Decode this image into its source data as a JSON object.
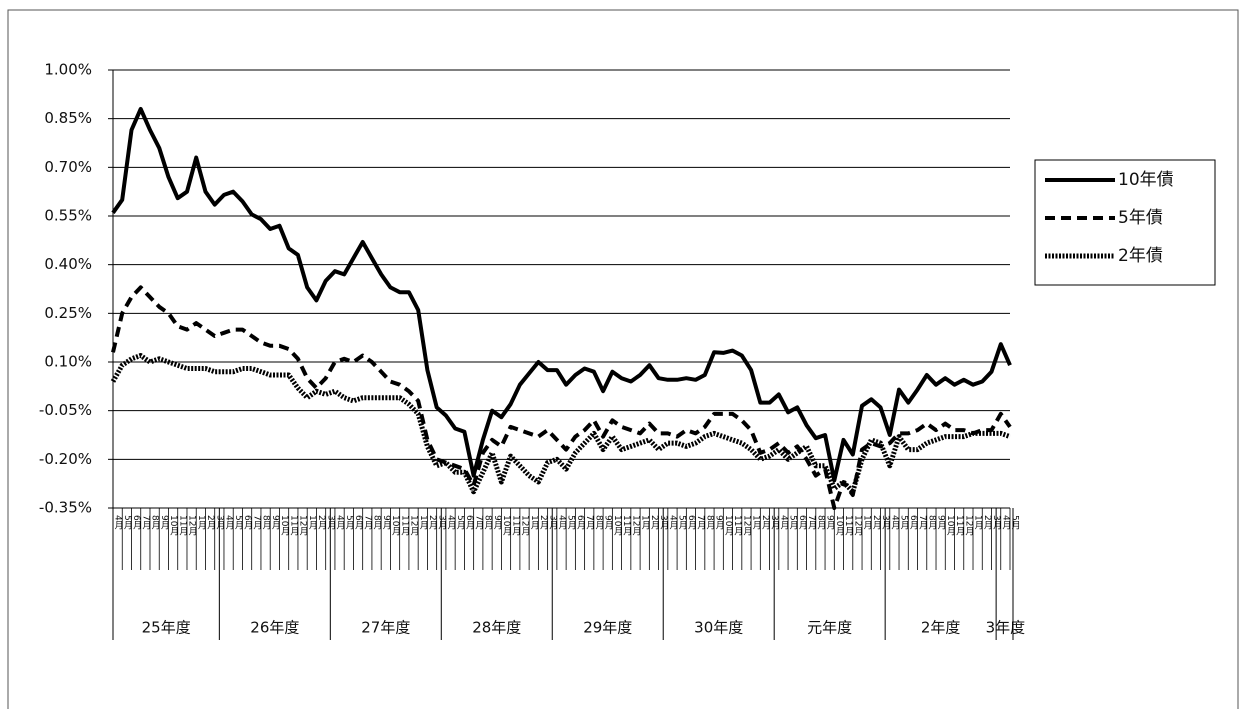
{
  "chart_data": {
    "type": "line",
    "groups": [
      {
        "label": "25年度",
        "categories": [
          "4月",
          "5月",
          "6月",
          "7月",
          "8月",
          "9月",
          "10月",
          "11月",
          "12月",
          "1月",
          "2月",
          "3月"
        ]
      },
      {
        "label": "26年度",
        "categories": [
          "4月",
          "5月",
          "6月",
          "7月",
          "8月",
          "9月",
          "10月",
          "11月",
          "12月",
          "1月",
          "2月",
          "3月"
        ]
      },
      {
        "label": "27年度",
        "categories": [
          "4月",
          "5月",
          "6月",
          "7月",
          "8月",
          "9月",
          "10月",
          "11月",
          "12月",
          "1月",
          "2月",
          "3月"
        ]
      },
      {
        "label": "28年度",
        "categories": [
          "4月",
          "5月",
          "6月",
          "7月",
          "8月",
          "9月",
          "10月",
          "11月",
          "12月",
          "1月",
          "2月",
          "3月"
        ]
      },
      {
        "label": "29年度",
        "categories": [
          "4月",
          "5月",
          "6月",
          "7月",
          "8月",
          "9月",
          "10月",
          "11月",
          "12月",
          "1月",
          "2月",
          "3月"
        ]
      },
      {
        "label": "30年度",
        "categories": [
          "4月",
          "5月",
          "6月",
          "7月",
          "8月",
          "9月",
          "10月",
          "11月",
          "12月",
          "1月",
          "2月",
          "3月"
        ]
      },
      {
        "label": "元年度",
        "categories": [
          "4月",
          "5月",
          "6月",
          "7月",
          "8月",
          "9月",
          "10月",
          "11月",
          "12月",
          "1月",
          "2月",
          "3月"
        ]
      },
      {
        "label": "2年度",
        "categories": [
          "4月",
          "5月",
          "6月",
          "7月",
          "8月",
          "9月",
          "10月",
          "11月",
          "12月",
          "1月",
          "2月",
          "3月"
        ]
      },
      {
        "label": "3年度",
        "categories": [
          "4月",
          "5月"
        ]
      }
    ],
    "series": [
      {
        "name": "10年債",
        "color": "#000000",
        "style": "solid",
        "values": [
          0.56,
          0.6,
          0.815,
          0.88,
          0.815,
          0.76,
          0.67,
          0.605,
          0.625,
          0.73,
          0.625,
          0.585,
          0.615,
          0.625,
          0.595,
          0.555,
          0.54,
          0.51,
          0.52,
          0.45,
          0.43,
          0.33,
          0.29,
          0.35,
          0.38,
          0.37,
          0.42,
          0.47,
          0.42,
          0.37,
          0.33,
          0.315,
          0.315,
          0.26,
          0.075,
          -0.04,
          -0.065,
          -0.105,
          -0.115,
          -0.25,
          -0.14,
          -0.05,
          -0.07,
          -0.03,
          0.03,
          0.065,
          0.1,
          0.075,
          0.075,
          0.03,
          0.06,
          0.08,
          0.07,
          0.01,
          0.07,
          0.05,
          0.04,
          0.06,
          0.09,
          0.05,
          0.045,
          0.045,
          0.05,
          0.045,
          0.06,
          0.13,
          0.128,
          0.135,
          0.12,
          0.075,
          -0.025,
          -0.025,
          0.0,
          -0.055,
          -0.04,
          -0.095,
          -0.135,
          -0.125,
          -0.265,
          -0.14,
          -0.185,
          -0.035,
          -0.015,
          -0.04,
          -0.125,
          0.015,
          -0.025,
          0.015,
          0.06,
          0.03,
          0.05,
          0.03,
          0.045,
          0.03,
          0.04,
          0.07,
          0.155,
          0.09
        ]
      },
      {
        "name": "5年債",
        "color": "#000000",
        "style": "dashed",
        "values": [
          0.13,
          0.25,
          0.3,
          0.33,
          0.3,
          0.27,
          0.25,
          0.21,
          0.2,
          0.22,
          0.2,
          0.18,
          0.19,
          0.2,
          0.2,
          0.18,
          0.16,
          0.15,
          0.15,
          0.14,
          0.11,
          0.05,
          0.02,
          0.05,
          0.1,
          0.11,
          0.1,
          0.12,
          0.1,
          0.07,
          0.04,
          0.03,
          0.01,
          -0.02,
          -0.14,
          -0.2,
          -0.21,
          -0.22,
          -0.23,
          -0.28,
          -0.18,
          -0.14,
          -0.16,
          -0.1,
          -0.11,
          -0.12,
          -0.13,
          -0.11,
          -0.14,
          -0.17,
          -0.13,
          -0.11,
          -0.08,
          -0.13,
          -0.08,
          -0.1,
          -0.11,
          -0.12,
          -0.09,
          -0.12,
          -0.12,
          -0.13,
          -0.11,
          -0.12,
          -0.1,
          -0.06,
          -0.06,
          -0.06,
          -0.08,
          -0.11,
          -0.18,
          -0.17,
          -0.15,
          -0.18,
          -0.16,
          -0.2,
          -0.25,
          -0.23,
          -0.35,
          -0.27,
          -0.31,
          -0.17,
          -0.15,
          -0.16,
          -0.15,
          -0.12,
          -0.12,
          -0.11,
          -0.09,
          -0.11,
          -0.09,
          -0.11,
          -0.11,
          -0.12,
          -0.11,
          -0.11,
          -0.06,
          -0.1
        ]
      },
      {
        "name": "2年債",
        "color": "#000000",
        "style": "dotted",
        "values": [
          0.04,
          0.09,
          0.11,
          0.12,
          0.1,
          0.11,
          0.1,
          0.09,
          0.08,
          0.08,
          0.08,
          0.07,
          0.07,
          0.07,
          0.08,
          0.08,
          0.07,
          0.06,
          0.06,
          0.06,
          0.02,
          -0.01,
          0.01,
          0.0,
          0.01,
          -0.01,
          -0.02,
          -0.01,
          -0.01,
          -0.01,
          -0.01,
          -0.01,
          -0.03,
          -0.06,
          -0.16,
          -0.22,
          -0.21,
          -0.24,
          -0.24,
          -0.3,
          -0.24,
          -0.18,
          -0.27,
          -0.19,
          -0.22,
          -0.25,
          -0.27,
          -0.21,
          -0.2,
          -0.23,
          -0.18,
          -0.15,
          -0.12,
          -0.17,
          -0.13,
          -0.17,
          -0.16,
          -0.15,
          -0.14,
          -0.17,
          -0.15,
          -0.15,
          -0.16,
          -0.15,
          -0.13,
          -0.12,
          -0.13,
          -0.14,
          -0.15,
          -0.17,
          -0.2,
          -0.19,
          -0.17,
          -0.2,
          -0.18,
          -0.16,
          -0.22,
          -0.22,
          -0.29,
          -0.27,
          -0.3,
          -0.2,
          -0.14,
          -0.15,
          -0.22,
          -0.13,
          -0.17,
          -0.17,
          -0.15,
          -0.14,
          -0.13,
          -0.13,
          -0.13,
          -0.12,
          -0.12,
          -0.12,
          -0.12,
          -0.13
        ]
      }
    ],
    "ylim": [
      -0.35,
      1.0
    ],
    "yticks": [
      {
        "value": -0.35,
        "label": "-0.35%"
      },
      {
        "value": -0.2,
        "label": "-0.20%"
      },
      {
        "value": -0.05,
        "label": "-0.05%"
      },
      {
        "value": 0.1,
        "label": "0.10%"
      },
      {
        "value": 0.25,
        "label": "0.25%"
      },
      {
        "value": 0.4,
        "label": "0.40%"
      },
      {
        "value": 0.55,
        "label": "0.55%"
      },
      {
        "value": 0.7,
        "label": "0.70%"
      },
      {
        "value": 0.85,
        "label": "0.85%"
      },
      {
        "value": 1.0,
        "label": "1.00%"
      }
    ],
    "grid": true,
    "legend": "right"
  }
}
